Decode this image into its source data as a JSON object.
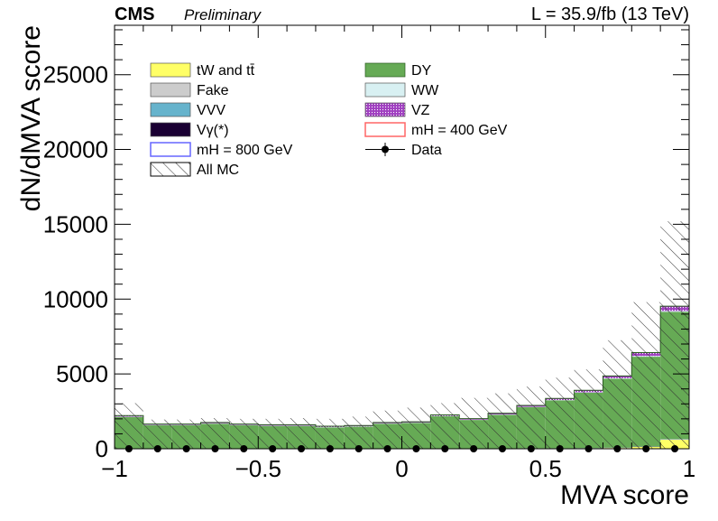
{
  "header": {
    "experiment": "CMS",
    "status": "Preliminary",
    "lumi": "L = 35.9/fb (13 TeV)"
  },
  "colors": {
    "tw_tt": "#ffff66",
    "fake": "#cccccc",
    "vvv": "#66b3cc",
    "vgamma": "#1a0033",
    "dy": "#66aa55",
    "ww": "#d8f0f2",
    "vz": "#a040c0",
    "signal_800": "#6666ff",
    "signal_400": "#ff6666",
    "data": "#000000"
  },
  "chart_data": {
    "type": "bar",
    "stacked": true,
    "title": "",
    "xlabel": "MVA score",
    "ylabel": "dN/dMVA score",
    "xlim": [
      -1,
      1
    ],
    "ylim": [
      0,
      28300
    ],
    "x_ticks": [
      "−1",
      "−0.5",
      "0",
      "0.5",
      "1"
    ],
    "y_ticks": [
      "0",
      "5000",
      "10000",
      "15000",
      "20000",
      "25000"
    ],
    "grid": false,
    "legend_position": "top-left, two columns",
    "bin_edges": [
      -1.0,
      -0.9,
      -0.8,
      -0.7,
      -0.6,
      -0.5,
      -0.4,
      -0.3,
      -0.2,
      -0.1,
      0.0,
      0.1,
      0.2,
      0.3,
      0.4,
      0.5,
      0.6,
      0.7,
      0.8,
      0.9,
      1.0
    ],
    "series": [
      {
        "name": "tW and tt̄",
        "color_key": "tw_tt",
        "values": [
          10,
          10,
          10,
          10,
          10,
          10,
          10,
          10,
          10,
          10,
          10,
          10,
          10,
          10,
          20,
          20,
          30,
          50,
          120,
          600
        ]
      },
      {
        "name": "Fake",
        "color_key": "fake",
        "values": [
          5,
          5,
          5,
          5,
          5,
          5,
          5,
          5,
          5,
          5,
          5,
          5,
          5,
          5,
          5,
          5,
          5,
          10,
          10,
          20
        ]
      },
      {
        "name": "VVV",
        "color_key": "vvv",
        "values": [
          5,
          5,
          5,
          5,
          5,
          5,
          5,
          5,
          5,
          5,
          5,
          5,
          5,
          5,
          5,
          5,
          5,
          10,
          10,
          20
        ]
      },
      {
        "name": "Vγ(*)",
        "color_key": "vgamma",
        "values": [
          5,
          5,
          5,
          5,
          5,
          5,
          5,
          5,
          5,
          5,
          5,
          5,
          5,
          5,
          5,
          5,
          5,
          5,
          10,
          10
        ]
      },
      {
        "name": "DY",
        "color_key": "dy",
        "values": [
          2100,
          1550,
          1550,
          1650,
          1550,
          1500,
          1500,
          1400,
          1450,
          1650,
          1700,
          2150,
          1900,
          2250,
          2750,
          3200,
          3700,
          4600,
          6000,
          8500
        ]
      },
      {
        "name": "WW",
        "color_key": "ww",
        "values": [
          20,
          20,
          20,
          20,
          20,
          20,
          20,
          20,
          20,
          20,
          20,
          20,
          20,
          20,
          20,
          20,
          30,
          40,
          50,
          60
        ]
      },
      {
        "name": "VZ",
        "color_key": "vz",
        "values": [
          70,
          60,
          60,
          60,
          60,
          60,
          60,
          60,
          60,
          60,
          60,
          70,
          70,
          80,
          90,
          110,
          130,
          150,
          230,
          320
        ]
      }
    ],
    "legend": [
      {
        "label": "tW and tt̄",
        "kind": "fill",
        "color_key": "tw_tt"
      },
      {
        "label": "DY",
        "kind": "fill",
        "color_key": "dy"
      },
      {
        "label": "Fake",
        "kind": "fill",
        "color_key": "fake"
      },
      {
        "label": "WW",
        "kind": "fill",
        "color_key": "ww"
      },
      {
        "label": "VVV",
        "kind": "fill",
        "color_key": "vvv"
      },
      {
        "label": "VZ",
        "kind": "fill",
        "color_key": "vz"
      },
      {
        "label": "Vγ(*)",
        "kind": "fill",
        "color_key": "vgamma"
      },
      {
        "label": "mH = 400 GeV",
        "kind": "outline",
        "color_key": "signal_400"
      },
      {
        "label": "mH = 800 GeV",
        "kind": "outline",
        "color_key": "signal_800"
      },
      {
        "label": "Data",
        "kind": "marker",
        "color_key": "data"
      },
      {
        "label": "All MC",
        "kind": "hatch",
        "color_key": "data"
      }
    ],
    "all_mc_uncertainty_upper": [
      3050,
      1950,
      1950,
      2050,
      2000,
      2000,
      2050,
      2000,
      2150,
      2550,
      2750,
      3050,
      3400,
      3700,
      4150,
      4750,
      5300,
      7250,
      9800,
      15200
    ],
    "data_points": [
      0,
      0,
      0,
      0,
      0,
      0,
      0,
      0,
      0,
      0,
      0,
      0,
      0,
      0,
      0,
      0,
      0,
      0,
      0,
      0
    ]
  }
}
